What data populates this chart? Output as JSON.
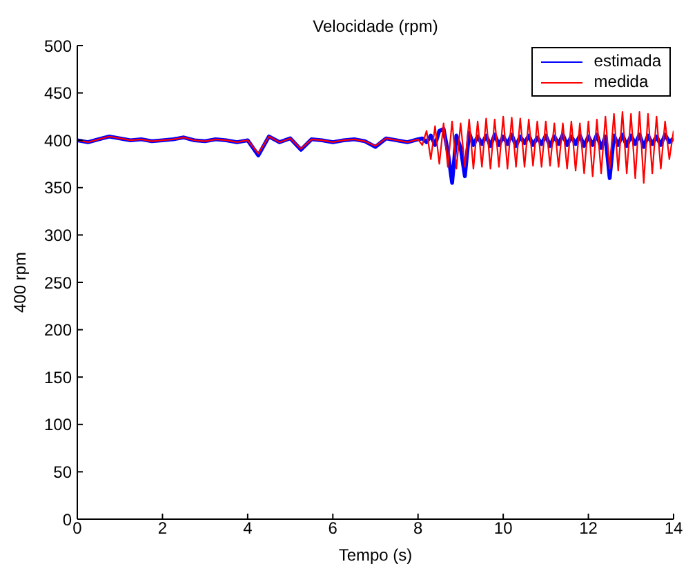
{
  "chart_data": {
    "type": "line",
    "title": "Velocidade (rpm)",
    "xlabel": "Tempo (s)",
    "ylabel": "400 rpm",
    "x": [
      0,
      0.25,
      0.5,
      0.75,
      1,
      1.25,
      1.5,
      1.75,
      2,
      2.25,
      2.5,
      2.75,
      3,
      3.25,
      3.5,
      3.75,
      4,
      4.25,
      4.5,
      4.75,
      5,
      5.25,
      5.5,
      5.75,
      6,
      6.25,
      6.5,
      6.75,
      7,
      7.25,
      7.5,
      7.75,
      8,
      8.1,
      8.2,
      8.3,
      8.4,
      8.5,
      8.6,
      8.7,
      8.8,
      8.9,
      9.0,
      9.1,
      9.2,
      9.3,
      9.4,
      9.5,
      9.6,
      9.7,
      9.8,
      9.9,
      10.0,
      10.1,
      10.2,
      10.3,
      10.4,
      10.5,
      10.6,
      10.7,
      10.8,
      10.9,
      11.0,
      11.1,
      11.2,
      11.3,
      11.4,
      11.5,
      11.6,
      11.7,
      11.8,
      11.9,
      12.0,
      12.1,
      12.2,
      12.3,
      12.4,
      12.5,
      12.6,
      12.7,
      12.8,
      12.9,
      13.0,
      13.1,
      13.2,
      13.3,
      13.4,
      13.5,
      13.6,
      13.7,
      13.8,
      13.9,
      14.0
    ],
    "series": [
      {
        "name": "estimada",
        "color": "#0000ff",
        "values": [
          400,
          398,
          401,
          404,
          402,
          400,
          401,
          399,
          400,
          401,
          403,
          400,
          399,
          401,
          400,
          398,
          400,
          384,
          404,
          398,
          402,
          390,
          401,
          400,
          398,
          400,
          401,
          399,
          393,
          402,
          400,
          398,
          401,
          402,
          398,
          405,
          395,
          410,
          412,
          388,
          355,
          405,
          392,
          362,
          408,
          395,
          404,
          396,
          405,
          394,
          406,
          395,
          404,
          396,
          406,
          394,
          404,
          397,
          405,
          395,
          403,
          396,
          405,
          394,
          404,
          396,
          406,
          395,
          404,
          396,
          405,
          394,
          404,
          395,
          406,
          392,
          404,
          360,
          405,
          395,
          406,
          394,
          405,
          396,
          406,
          393,
          405,
          396,
          404,
          395,
          406,
          398,
          402
        ]
      },
      {
        "name": "medida",
        "color": "#ff0000",
        "values": [
          400,
          398,
          401,
          404,
          402,
          400,
          401,
          399,
          400,
          401,
          403,
          400,
          399,
          401,
          400,
          398,
          400,
          386,
          404,
          398,
          402,
          391,
          401,
          400,
          398,
          400,
          401,
          399,
          394,
          402,
          400,
          398,
          401,
          395,
          410,
          380,
          415,
          375,
          418,
          372,
          420,
          370,
          418,
          372,
          422,
          370,
          420,
          372,
          423,
          370,
          422,
          372,
          425,
          370,
          424,
          372,
          423,
          372,
          422,
          373,
          420,
          372,
          420,
          373,
          418,
          372,
          418,
          370,
          420,
          368,
          418,
          365,
          420,
          362,
          422,
          365,
          425,
          370,
          428,
          368,
          430,
          365,
          428,
          360,
          430,
          355,
          428,
          365,
          425,
          370,
          420,
          380,
          410
        ]
      }
    ],
    "xlim": [
      0,
      14
    ],
    "xticks": [
      0,
      2,
      4,
      6,
      8,
      10,
      12,
      14
    ],
    "ylim": [
      0,
      500
    ],
    "yticks": [
      0,
      50,
      100,
      150,
      200,
      250,
      300,
      350,
      400,
      450,
      500
    ],
    "grid": false,
    "legend": "top right",
    "marker": "none",
    "line_style": "solid"
  }
}
